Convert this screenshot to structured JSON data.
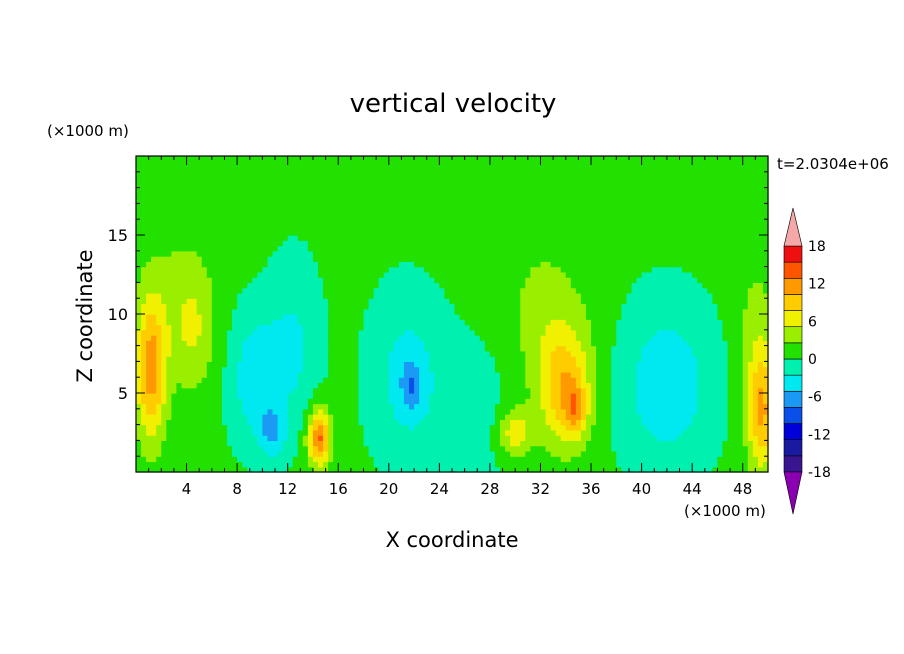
{
  "chart_data": {
    "type": "heatmap",
    "title": "vertical velocity",
    "xlabel": "X coordinate",
    "ylabel": "Z coordinate",
    "x_unit": "(×1000 m)",
    "y_unit": "(×1000 m)",
    "time_label": "t=2.0304e+06",
    "xlim": [
      0,
      50
    ],
    "ylim": [
      0,
      20
    ],
    "x_ticks": [
      4,
      8,
      12,
      16,
      20,
      24,
      28,
      32,
      36,
      40,
      44,
      48
    ],
    "y_ticks": [
      5,
      10,
      15
    ],
    "colorbar": {
      "levels": [
        -21,
        -18,
        -15,
        -12,
        -9,
        -6,
        -3,
        0,
        3,
        6,
        9,
        12,
        15,
        18,
        21
      ],
      "tick_labels": [
        18,
        12,
        6,
        0,
        -6,
        -12,
        -18
      ],
      "colors": [
        "#8a00b0",
        "#3a1590",
        "#1a1aa0",
        "#0000d8",
        "#0a50e8",
        "#1a9af5",
        "#00e8f0",
        "#00f0b0",
        "#22e000",
        "#9aee00",
        "#f0f000",
        "#ffcc00",
        "#ff9900",
        "#ff5500",
        "#ee1010",
        "#f5a8a8"
      ],
      "extend": "both"
    },
    "field_features": [
      {
        "x": 1.2,
        "z": 6.5,
        "sx": 1.2,
        "sz": 4.5,
        "w": 13
      },
      {
        "x": 4.5,
        "z": 9,
        "sx": 1.8,
        "sz": 4,
        "w": 5
      },
      {
        "x": 3,
        "z": 12,
        "sx": 3,
        "sz": 5,
        "w": 2
      },
      {
        "x": 14.5,
        "z": 2.2,
        "sx": 0.9,
        "sz": 1.8,
        "w": 15
      },
      {
        "x": 9.5,
        "z": 6,
        "sx": 2,
        "sz": 4,
        "w": -6
      },
      {
        "x": 10.8,
        "z": 2.5,
        "sx": 1,
        "sz": 1.5,
        "w": -6
      },
      {
        "x": 12.5,
        "z": 8,
        "sx": 2,
        "sz": 5,
        "w": -4
      },
      {
        "x": 21.5,
        "z": 6,
        "sx": 2.8,
        "sz": 5,
        "w": -5
      },
      {
        "x": 21.8,
        "z": 5.5,
        "sx": 0.8,
        "sz": 1.5,
        "w": -5
      },
      {
        "x": 30,
        "z": 2.5,
        "sx": 1.3,
        "sz": 1.5,
        "w": 8
      },
      {
        "x": 34,
        "z": 5,
        "sx": 2,
        "sz": 3.5,
        "w": 10
      },
      {
        "x": 34.8,
        "z": 4,
        "sx": 0.8,
        "sz": 1.5,
        "w": 6
      },
      {
        "x": 33,
        "z": 8,
        "sx": 3,
        "sz": 4,
        "w": 3
      },
      {
        "x": 32,
        "z": 12,
        "sx": 4,
        "sz": 5,
        "w": 2
      },
      {
        "x": 42,
        "z": 5.5,
        "sx": 3.5,
        "sz": 5,
        "w": -6
      },
      {
        "x": 49.5,
        "z": 4,
        "sx": 1.2,
        "sz": 4,
        "w": 12
      },
      {
        "x": 49,
        "z": 10,
        "sx": 1.5,
        "sz": 4,
        "w": 3
      },
      {
        "x": 25,
        "z": 16,
        "sx": 2,
        "sz": 1.5,
        "w": 1.5
      },
      {
        "x": 27,
        "z": 4,
        "sx": 3,
        "sz": 5,
        "w": -2
      }
    ]
  }
}
